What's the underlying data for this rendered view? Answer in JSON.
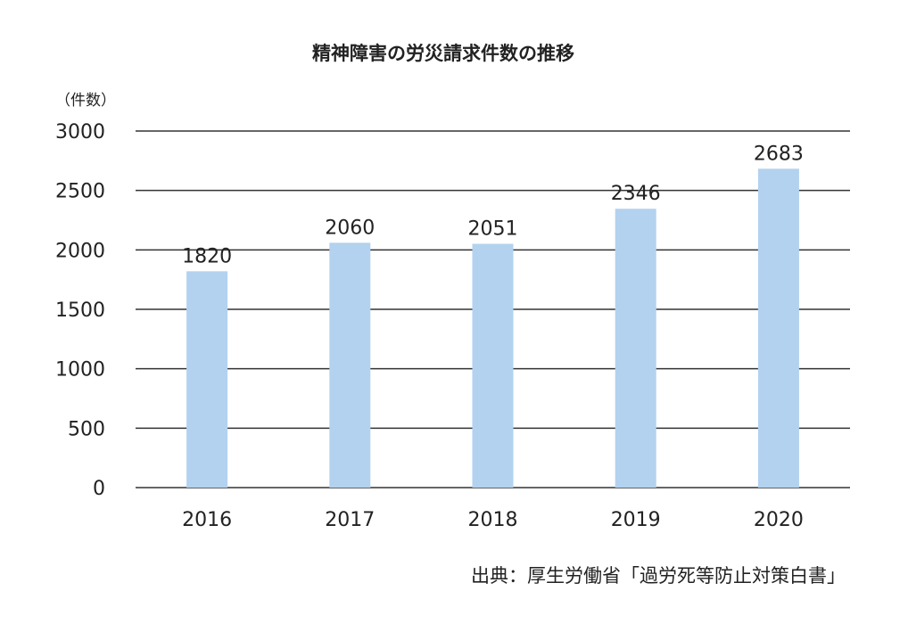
{
  "chart_data": {
    "type": "bar",
    "title": "精神障害の労災請求件数の推移",
    "ylabel": "（件数）",
    "xlabel": "",
    "categories": [
      "2016",
      "2017",
      "2018",
      "2019",
      "2020"
    ],
    "values": [
      1820,
      2060,
      2051,
      2346,
      2683
    ],
    "data_labels": [
      "1820",
      "2060",
      "2051",
      "2346",
      "2683"
    ],
    "ylim": [
      0,
      3000
    ],
    "yticks": [
      0,
      500,
      1000,
      1500,
      2000,
      2500,
      3000
    ],
    "ytick_labels": [
      "0",
      "500",
      "1000",
      "1500",
      "2000",
      "2500",
      "3000"
    ],
    "grid": true,
    "bar_color": "#b3d2ef",
    "grid_color": "#333333"
  },
  "source": "出典：厚生労働省「過労死等防止対策白書」"
}
